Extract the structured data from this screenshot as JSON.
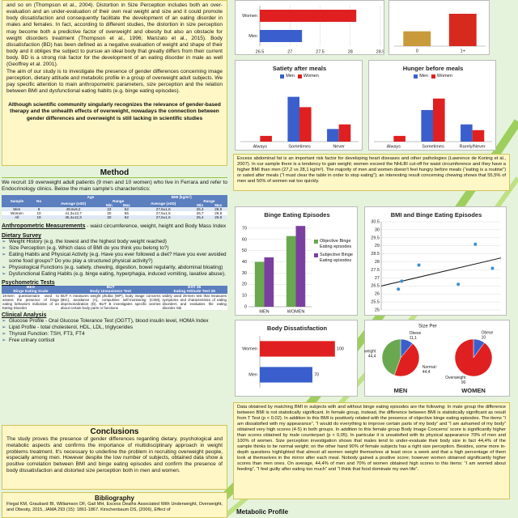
{
  "intro": {
    "paragraphs": [
      "and so on (Thompson et al., 2004). Distortion in Size Perception includes both an over-evaluation and an under-evaluation of their own real weight and size and it could promote body dissatisfaction and consequently facilitate the development of an eating disorder in males and females. In fact, according to different studies, the distortion in size perception may become both a predictive factor of overweight and obesity but also an obstacle for weight disorders treatment (Thompson et al., 1996; Manzato et al., 2015). Body dissatisfaction (BD) has been defined as a negative evaluation of weight and shape of their body and it obliges the subject to pursue an ideal body that greatly differs from their current body. BD is a strong risk factor for the development of an eating disorder in male as well (Geoffrey et al. 2001).",
      "The aim of our study is to investigate the presence of gender differences concerning image perception, dietary attitude and metabolic profile in a group of overweight adult subjects. We pay specific attention to main anthropometric parameters, size perception and the relation between BMI and dysfunctional eating habits (e.g. binge eating episodes)."
    ],
    "highlight": "Although scientific community singularly recognizes the relevance of gender-based therapy and the unhealth effects of overweight, nowadays the connection between gender differences and overweight is still lacking in scientific studies"
  },
  "method": {
    "title": "Method",
    "text": "We recruit 19 overweight adult patients (9 men and 10 women) who live in Ferrara and refer to Endocrinology clinics. Below the main sample's characteristics:",
    "table": {
      "head1": [
        "Sample",
        "No",
        "Age",
        "BMI (kg/m²)"
      ],
      "head2": [
        "Average (±SD)",
        "Range",
        "Average (±SD)",
        "Range"
      ],
      "head3": [
        "Min",
        "Max",
        "Min",
        "Max"
      ],
      "rows": [
        [
          "Men",
          "9",
          "49,9±9,2",
          "23",
          "62",
          "27,8±1,6",
          "25,4",
          "29,9"
        ],
        [
          "Women",
          "10",
          "41,3±13,7",
          "20",
          "56",
          "27,5±1,5",
          "25,7",
          "29,9"
        ],
        [
          "All",
          "19",
          "45,4±12,3",
          "20",
          "62",
          "27,6±1,6",
          "25,4",
          "29,9"
        ]
      ]
    },
    "anthropometric": {
      "title": "Anthropometric Measurements",
      "text": " - waist circumference, weight, height and Body Mass Index"
    },
    "dietary": {
      "title": "Dietary Survey",
      "items": [
        "Weight History (e.g. the lowest and the highest body weight reached)",
        "Size Perception (e.g. Which class of BMI do you think you belong to?)",
        "Eating Habits and Physical Activity (e.g. Have you ever followed a diet? Have you ever avoided some food groups? Do you play a structured physical activity?)",
        "Physiological Functions (e.g. satiety, chewing, digestion, bowel regularity, abdominal bloating)",
        "Dysfunctional Eating Habits (e.g. binge eating, hyperphagia, induced vomiting, laxative abuse)."
      ]
    },
    "psychometric": {
      "title": "Psychometric Tests",
      "tests": [
        {
          "abbr": "BES",
          "name": "Binge Eating Scale",
          "desc": "16-item questionnaire used to assess the presence of binge eating behaviors indicative of an Eating Disorder"
        },
        {
          "abbr": "BUT",
          "name": "Body Uneasiness Test",
          "desc": "BUT A measures weight phobia (WP), body image concerns (BIC), avoidance (A), compulsive self-monitoring (CSM), depersonalization (D). BUT B investigates specific worries about certain body parts or functions"
        },
        {
          "abbr": "EAT 26",
          "name": "Eating Attitude Test 26",
          "desc": "widely used 26-item test that measures symptoms and characteristics of eating disorders and evaluates the eating disorder risk"
        }
      ]
    },
    "clinical": {
      "title": "Clinical Analysis",
      "items": [
        "Glucose Profile - Oral Glucose Tolerance Test (OGTT), blood insulin level, HOMA Index",
        "Lipid Profile - total cholesterol, HDL, LDL, triglycerides",
        "Thyroid Function: TSH, FT3, FT4",
        "Free urinary cortisol"
      ]
    }
  },
  "conclusions": {
    "title": "Conclusions",
    "text": "The study proves the presence of gender differences regarding dietary, psychological and metabolic aspects and confirms the importance of multidisciplinary approach in weight problems treatment. It's necessary to underline the problem in recruiting overweight people, especially among men. However despite the low number of subjects, obtained data show a positive correlation between BMI and binge eating episodes and confirm the presence of body dissatisfaction and distorted size perception both in men and women."
  },
  "bibliography": {
    "title": "Bibliography",
    "text": "Flegal KM, Graubard BI, Williamson DF, Gail MH, Excess Deaths Associated With Underweight, Overweight, and Obesity, 2015, JAMA 293 (15): 1861-1867. Kirschenbaum DS, (2006), Effect of"
  },
  "notes": [
    "Excess abdominal fat is an important risk factor for developing heart diseases and other pathologies (Lawrence de Koning et al., 2007). In our sample there is a tendency to gain weight; women exceed the NHLBI cut-off for waist circumference and they have a higher BMI than men (27,2 vs 28,1 kg/m²). The majority of men and women doesn't feel hungry before meals (“eating is a routine”) or sated after meals (“I must clear the table in order to stop eating”); an interesting result concerning chewing shows that 55,5% of men and 50% of women eat too quickly.",
    "Data obtained by matching BMI in subjects with and without binge eating episodes are the following: In male group the difference between BMI is not statistically significant. In female group, instead, the difference between BMI is statistically significant as result from T Test (p < 0,02). In addition to this BMI is positively related with the presence of objective binge eating episodes. The items “I am dissatisfied with my appearance”, “I would do everything to improve certain parts of my body” and “I am ashamed of my body” obtained very high scores (4-5) in both groups. In addition to this female group Body Image Concerns' score is significantly higher than scores obtained by male counterpart (p < 0,05). In particular it is unsatisfied with its physical appearance 70% of men and 100% of women. Size perception investigation shows that males tend to under-evaluate their body size in fact 44,4% of the sample thinks to be normal weight; on the other hand 90% of female subjects has a right size perception. Besides, some more in-depth questions highlighted that almost all women weight themselves at least once a week and that a high percentage of them look at themselves in the mirror after each meal. Nobody gained a positive score; however women obtained significantly higher scores than men ones. On average, 44,4% of men and 70% of women obtained high scores to this items: “I am worried about feeding”, “I feel guilty after eating too much” and “I think that food dominate my own life”."
  ],
  "metabolic_title": "Metabolic Profile",
  "chart_data": [
    {
      "type": "bar",
      "orientation": "horizontal",
      "categories": [
        "Women",
        "Men"
      ],
      "values": [
        28.1,
        27.2
      ],
      "colors": [
        "#e02020",
        "#3a5fcd"
      ],
      "xlim": [
        26.5,
        28.5
      ],
      "xticks": [
        26.5,
        27,
        27.5,
        28,
        28.5
      ],
      "grid": true
    },
    {
      "type": "bar",
      "categories": [
        "0",
        "1+"
      ],
      "values": [
        1.1,
        2.4
      ],
      "colors": [
        "#c89a3a",
        "#d62a1e"
      ],
      "ylim": [
        0,
        3
      ]
    },
    {
      "type": "bar",
      "title": "Satiety after meals",
      "categories": [
        "Always",
        "Sometimes",
        "Never"
      ],
      "series": [
        {
          "name": "Men",
          "color": "#3a5fcd",
          "values": [
            0,
            78,
            22
          ]
        },
        {
          "name": "Women",
          "color": "#e02020",
          "values": [
            10,
            60,
            30
          ]
        }
      ],
      "ylim": [
        0,
        100
      ],
      "legend": "top"
    },
    {
      "type": "bar",
      "title": "Hunger before meals",
      "categories": [
        "Always",
        "Sometimes",
        "Rarely/Never"
      ],
      "series": [
        {
          "name": "Men",
          "color": "#3a5fcd",
          "values": [
            0,
            55,
            30
          ]
        },
        {
          "name": "Women",
          "color": "#e02020",
          "values": [
            10,
            75,
            20
          ]
        }
      ],
      "ylim": [
        0,
        100
      ],
      "legend": "top"
    },
    {
      "type": "bar",
      "title": "Binge Eating Episodes",
      "categories": [
        "MEN",
        "WOMEN"
      ],
      "series": [
        {
          "name": "Objective Binge Eating episodes",
          "color": "#6aa84f",
          "values": [
            40,
            63
          ]
        },
        {
          "name": "Subjective Binge Eating episodes",
          "color": "#7b3fa0",
          "values": [
            44,
            72
          ]
        }
      ],
      "ylim": [
        0,
        75
      ],
      "yticks": [
        0,
        10,
        20,
        30,
        40,
        50,
        60,
        70
      ],
      "grid": true,
      "legend": "right"
    },
    {
      "type": "scatter",
      "title": "BMI and Binge Eating Episodes",
      "x": [
        1,
        1.2,
        2.2,
        4.5,
        5.5,
        6.5
      ],
      "y": [
        26.3,
        26.8,
        27.8,
        26.6,
        29.1,
        27.6
      ],
      "xlim": [
        0,
        7
      ],
      "ylim": [
        25,
        30.5
      ],
      "yticks": [
        25,
        25.5,
        26,
        26.5,
        27,
        27.5,
        28,
        28.5,
        29,
        29.5,
        30,
        30.5
      ],
      "grid": true,
      "color": "#3a8fd0",
      "trendline": true
    },
    {
      "type": "bar",
      "orientation": "horizontal",
      "title": "Body Dissatisfaction",
      "categories": [
        "Women",
        "Men"
      ],
      "values": [
        100,
        70
      ],
      "colors": [
        "#e02020",
        "#3a5fcd"
      ],
      "xlim": [
        0,
        125
      ],
      "show_values": true
    },
    {
      "type": "pie",
      "subtitle": "Size Perception",
      "title": "MEN",
      "categories": [
        "Obese",
        "Normal weight",
        "Overweight"
      ],
      "values": [
        11.1,
        44.4,
        44.4
      ],
      "value_labels": [
        "11,1",
        "44,4",
        "44,4"
      ],
      "colors": [
        "#3a5fcd",
        "#e02020",
        "#6aa84f"
      ]
    },
    {
      "type": "pie",
      "title": "WOMEN",
      "categories": [
        "Obese",
        "Overweight"
      ],
      "values": [
        10,
        90
      ],
      "colors": [
        "#3a5fcd",
        "#e02020"
      ]
    }
  ]
}
